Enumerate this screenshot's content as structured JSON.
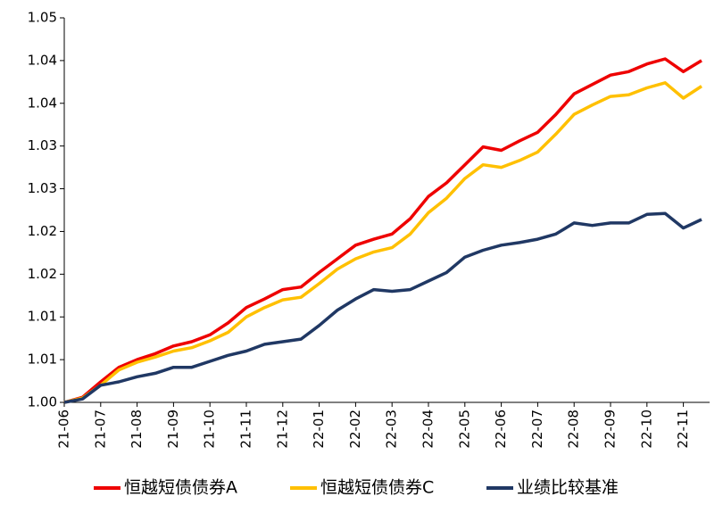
{
  "chart_data": {
    "type": "line",
    "categories": [
      "21-06",
      null,
      "21-07",
      null,
      "21-08",
      null,
      "21-09",
      null,
      "21-10",
      null,
      "21-11",
      null,
      "21-12",
      null,
      "22-01",
      null,
      "22-02",
      null,
      "22-03",
      null,
      "22-04",
      null,
      "22-05",
      null,
      "22-06",
      null,
      "22-07",
      null,
      "22-08",
      null,
      "22-09",
      null,
      "22-10",
      null,
      "22-11",
      null
    ],
    "series": [
      {
        "name": "恒越短债债券A",
        "color": "#ee0000",
        "values": [
          1.0,
          1.0006,
          1.0024,
          1.0041,
          1.005,
          1.0057,
          1.0066,
          1.0071,
          1.0079,
          1.0093,
          1.0111,
          1.0121,
          1.0132,
          1.0135,
          1.0152,
          1.0168,
          1.0184,
          1.0191,
          1.0197,
          1.0215,
          1.0241,
          1.0257,
          1.0278,
          1.0299,
          1.0295,
          1.0306,
          1.0316,
          1.0337,
          1.0361,
          1.0372,
          1.0383,
          1.0387,
          1.0396,
          1.0402,
          1.0387,
          1.04
        ]
      },
      {
        "name": "恒越短债债券C",
        "color": "#ffc000",
        "values": [
          1.0,
          1.0005,
          1.002,
          1.0038,
          1.0047,
          1.0053,
          1.006,
          1.0064,
          1.0072,
          1.0082,
          1.01,
          1.0111,
          1.012,
          1.0123,
          1.0139,
          1.0156,
          1.0168,
          1.0176,
          1.0181,
          1.0197,
          1.0222,
          1.0239,
          1.0262,
          1.0278,
          1.0275,
          1.0283,
          1.0293,
          1.0314,
          1.0337,
          1.0348,
          1.0358,
          1.036,
          1.0368,
          1.0374,
          1.0356,
          1.037
        ]
      },
      {
        "name": "业绩比较基准",
        "color": "#203864",
        "values": [
          1.0,
          1.0004,
          1.002,
          1.0024,
          1.003,
          1.0034,
          1.0041,
          1.0041,
          1.0048,
          1.0055,
          1.006,
          1.0068,
          1.0071,
          1.0074,
          1.009,
          1.0108,
          1.0121,
          1.0132,
          1.013,
          1.0132,
          1.0142,
          1.0152,
          1.017,
          1.0178,
          1.0184,
          1.0187,
          1.0191,
          1.0197,
          1.021,
          1.0207,
          1.021,
          1.021,
          1.022,
          1.0221,
          1.0204,
          1.0214
        ]
      }
    ],
    "ylim": [
      1.0,
      1.045
    ],
    "yticks": [
      {
        "value": 1.0,
        "label": "1.00"
      },
      {
        "value": 1.005,
        "label": "1.01"
      },
      {
        "value": 1.01,
        "label": "1.01"
      },
      {
        "value": 1.015,
        "label": "1.02"
      },
      {
        "value": 1.02,
        "label": "1.02"
      },
      {
        "value": 1.025,
        "label": "1.03"
      },
      {
        "value": 1.03,
        "label": "1.03"
      },
      {
        "value": 1.035,
        "label": "1.04"
      },
      {
        "value": 1.04,
        "label": "1.04"
      },
      {
        "value": 1.045,
        "label": "1.05"
      }
    ],
    "grid": false,
    "legend": "bottom"
  }
}
